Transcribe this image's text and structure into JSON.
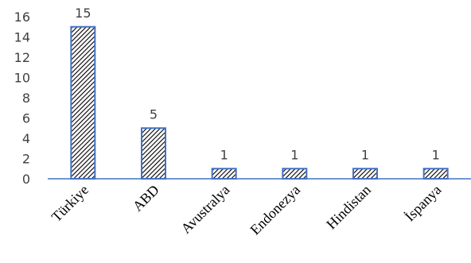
{
  "chart_data": {
    "type": "bar",
    "categories": [
      "Türkiye",
      "ABD",
      "Avustralya",
      "Endonezya",
      "Hindistan",
      "İspanya"
    ],
    "values": [
      15,
      5,
      1,
      1,
      1,
      1
    ],
    "data_labels": [
      "15",
      "5",
      "1",
      "1",
      "1",
      "1"
    ],
    "yticks": [
      "0",
      "2",
      "4",
      "6",
      "8",
      "10",
      "12",
      "14",
      "16"
    ],
    "ylim": [
      0,
      16
    ],
    "grid": false,
    "legend": "none",
    "bar_fill": "hatched",
    "colors": {
      "bar_border": "#4472C4",
      "hatch": "#000000",
      "axis": "#4472C4",
      "label_text": "#404040"
    }
  }
}
